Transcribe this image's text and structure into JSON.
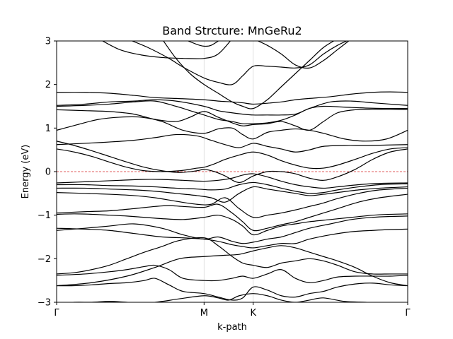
{
  "chart_data": {
    "type": "line",
    "title": "Band Strcture: MnGeRu2",
    "xlabel": "k-path",
    "ylabel": "Energy (eV)",
    "ylim": [
      -3,
      3
    ],
    "y_ticks": [
      -3,
      -2,
      -1,
      0,
      1,
      2,
      3
    ],
    "y_tick_labels": [
      "−3",
      "−2",
      "−1",
      "0",
      "1",
      "2",
      "3"
    ],
    "x_ticks": [
      {
        "label": "Γ",
        "pos": 0
      },
      {
        "label": "M",
        "pos": 0.42
      },
      {
        "label": "K",
        "pos": 0.56
      },
      {
        "label": "Γ",
        "pos": 1
      }
    ],
    "fermi_level": 0,
    "grid": "vertical lines at high-symmetry points",
    "series_color": "#000000",
    "fermi_color": "#d62728",
    "series": [
      {
        "x": [
          0,
          0.05,
          0.1,
          0.15,
          0.2,
          0.25,
          0.3,
          0.35,
          0.42,
          0.46,
          0.49,
          0.52,
          0.56,
          0.6,
          0.64,
          0.68,
          0.72,
          0.76,
          0.82,
          0.88,
          0.94,
          1
        ],
        "y": [
          -3.05,
          -3.0,
          -3.0,
          -2.98,
          -3.0,
          -3.02,
          -2.98,
          -2.92,
          -2.85,
          -2.9,
          -2.95,
          -2.85,
          -2.8,
          -2.85,
          -2.95,
          -3.0,
          -2.95,
          -2.9,
          -2.98,
          -3.0,
          -3.02,
          -3.05
        ]
      },
      {
        "x": [
          0,
          0.05,
          0.1,
          0.15,
          0.2,
          0.25,
          0.28,
          0.32,
          0.36,
          0.42,
          0.46,
          0.5,
          0.53,
          0.56,
          0.6,
          0.64,
          0.68,
          0.72,
          0.76,
          0.8,
          0.85,
          0.9,
          0.95,
          1
        ],
        "y": [
          -2.62,
          -2.62,
          -2.6,
          -2.57,
          -2.55,
          -2.5,
          -2.45,
          -2.6,
          -2.75,
          -2.8,
          -2.88,
          -2.95,
          -2.9,
          -2.65,
          -2.72,
          -2.85,
          -2.88,
          -2.8,
          -2.75,
          -2.65,
          -2.58,
          -2.56,
          -2.6,
          -2.62
        ]
      },
      {
        "x": [
          0,
          0.08,
          0.15,
          0.2,
          0.25,
          0.28,
          0.32,
          0.36,
          0.42,
          0.46,
          0.5,
          0.53,
          0.56,
          0.6,
          0.64,
          0.68,
          0.72,
          0.76,
          0.8,
          0.85,
          0.9,
          0.95,
          1
        ],
        "y": [
          -2.38,
          -2.35,
          -2.3,
          -2.25,
          -2.18,
          -2.15,
          -2.25,
          -2.45,
          -2.5,
          -2.5,
          -2.45,
          -2.4,
          -2.45,
          -2.35,
          -2.25,
          -2.45,
          -2.55,
          -2.5,
          -2.42,
          -2.4,
          -2.4,
          -2.4,
          -2.38
        ]
      },
      {
        "x": [
          0,
          0.05,
          0.1,
          0.15,
          0.2,
          0.25,
          0.3,
          0.35,
          0.42,
          0.46,
          0.5,
          0.53,
          0.56,
          0.6,
          0.64,
          0.68,
          0.72,
          0.76,
          0.8,
          0.85,
          0.9,
          0.95,
          1
        ],
        "y": [
          -2.35,
          -2.32,
          -2.25,
          -2.15,
          -2.0,
          -1.85,
          -1.72,
          -1.58,
          -1.52,
          -1.7,
          -1.95,
          -2.1,
          -2.15,
          -2.2,
          -2.1,
          -2.05,
          -2.0,
          -2.05,
          -2.15,
          -2.3,
          -2.35,
          -2.35,
          -2.35
        ]
      },
      {
        "x": [
          0,
          0.1,
          0.2,
          0.28,
          0.35,
          0.42,
          0.48,
          0.52,
          0.56,
          0.6,
          0.64,
          0.68,
          0.72,
          0.76,
          0.8,
          0.85,
          0.9,
          0.95,
          1
        ],
        "y": [
          -2.62,
          -2.55,
          -2.4,
          -2.2,
          -2.0,
          -1.95,
          -1.92,
          -1.9,
          -1.82,
          -1.75,
          -1.7,
          -1.75,
          -1.85,
          -1.95,
          -2.05,
          -2.2,
          -2.4,
          -2.55,
          -2.62
        ]
      },
      {
        "x": [
          0,
          0.08,
          0.15,
          0.22,
          0.3,
          0.36,
          0.42,
          0.46,
          0.5,
          0.53,
          0.56,
          0.6,
          0.64,
          0.68,
          0.72,
          0.78,
          0.84,
          0.9,
          0.95,
          1
        ],
        "y": [
          -1.3,
          -1.32,
          -1.35,
          -1.42,
          -1.5,
          -1.52,
          -1.55,
          -1.6,
          -1.68,
          -1.72,
          -1.75,
          -1.7,
          -1.65,
          -1.65,
          -1.55,
          -1.45,
          -1.38,
          -1.35,
          -1.33,
          -1.32
        ]
      },
      {
        "x": [
          0,
          0.08,
          0.15,
          0.22,
          0.3,
          0.36,
          0.42,
          0.46,
          0.5,
          0.53,
          0.56,
          0.6,
          0.64,
          0.68,
          0.72,
          0.78,
          0.84,
          0.9,
          0.95,
          1
        ],
        "y": [
          -1.35,
          -1.3,
          -1.25,
          -1.2,
          -1.3,
          -1.45,
          -1.55,
          -1.5,
          -1.6,
          -1.65,
          -1.62,
          -1.55,
          -1.5,
          -1.4,
          -1.3,
          -1.2,
          -1.1,
          -1.05,
          -1.03,
          -1.02
        ]
      },
      {
        "x": [
          0,
          0.05,
          0.1,
          0.15,
          0.2,
          0.25,
          0.3,
          0.36,
          0.42,
          0.46,
          0.5,
          0.53,
          0.56,
          0.6,
          0.64,
          0.68,
          0.72,
          0.78,
          0.84,
          0.9,
          0.95,
          1
        ],
        "y": [
          -0.98,
          -0.97,
          -0.98,
          -1.0,
          -1.02,
          -1.05,
          -1.08,
          -1.1,
          -1.05,
          -1.0,
          -1.1,
          -1.25,
          -1.45,
          -1.35,
          -1.25,
          -1.2,
          -1.15,
          -1.1,
          -1.05,
          -1.0,
          -0.98,
          -0.97
        ]
      },
      {
        "x": [
          0,
          0.08,
          0.15,
          0.22,
          0.28,
          0.32,
          0.36,
          0.42,
          0.46,
          0.5,
          0.53,
          0.56,
          0.6,
          0.64,
          0.68,
          0.72,
          0.76,
          0.8,
          0.86,
          0.92,
          1
        ],
        "y": [
          -0.95,
          -0.92,
          -0.9,
          -0.85,
          -0.8,
          -0.78,
          -0.8,
          -0.82,
          -0.75,
          -0.95,
          -1.15,
          -1.35,
          -1.3,
          -1.22,
          -1.15,
          -1.05,
          -0.95,
          -0.85,
          -0.7,
          -0.6,
          -0.52
        ]
      },
      {
        "x": [
          0,
          0.08,
          0.15,
          0.22,
          0.28,
          0.34,
          0.4,
          0.44,
          0.48,
          0.52,
          0.56,
          0.6,
          0.64,
          0.68,
          0.72,
          0.76,
          0.8,
          0.86,
          0.92,
          1
        ],
        "y": [
          -0.48,
          -0.5,
          -0.52,
          -0.55,
          -0.6,
          -0.68,
          -0.75,
          -0.75,
          -0.6,
          -0.85,
          -1.05,
          -1.0,
          -0.95,
          -0.88,
          -0.8,
          -0.72,
          -0.62,
          -0.5,
          -0.42,
          -0.38
        ]
      },
      {
        "x": [
          0,
          0.08,
          0.15,
          0.22,
          0.28,
          0.34,
          0.4,
          0.44,
          0.48,
          0.52,
          0.56,
          0.6,
          0.64,
          0.68,
          0.72,
          0.76,
          0.8,
          0.86,
          0.92,
          1
        ],
        "y": [
          -0.38,
          -0.38,
          -0.4,
          -0.42,
          -0.45,
          -0.5,
          -0.55,
          -0.6,
          -0.7,
          -0.5,
          -0.35,
          -0.4,
          -0.45,
          -0.5,
          -0.55,
          -0.52,
          -0.48,
          -0.42,
          -0.38,
          -0.35
        ]
      },
      {
        "x": [
          0,
          0.08,
          0.15,
          0.22,
          0.28,
          0.34,
          0.4,
          0.44,
          0.48,
          0.52,
          0.56,
          0.6,
          0.64,
          0.68,
          0.72,
          0.76,
          0.8,
          0.86,
          0.92,
          1
        ],
        "y": [
          -0.3,
          -0.3,
          -0.32,
          -0.33,
          -0.35,
          -0.38,
          -0.4,
          -0.42,
          -0.4,
          -0.3,
          -0.25,
          -0.3,
          -0.38,
          -0.45,
          -0.5,
          -0.48,
          -0.42,
          -0.35,
          -0.3,
          -0.28
        ]
      },
      {
        "x": [
          0,
          0.06,
          0.12,
          0.18,
          0.24,
          0.3,
          0.36,
          0.42,
          0.46,
          0.5,
          0.53,
          0.56,
          0.6,
          0.64,
          0.68,
          0.72,
          0.76,
          0.8,
          0.86,
          0.92,
          1
        ],
        "y": [
          -0.26,
          -0.24,
          -0.22,
          -0.2,
          -0.18,
          -0.18,
          -0.2,
          -0.22,
          -0.2,
          -0.15,
          -0.08,
          -0.05,
          -0.12,
          -0.22,
          -0.3,
          -0.35,
          -0.38,
          -0.35,
          -0.3,
          -0.27,
          -0.26
        ]
      },
      {
        "x": [
          0,
          0.05,
          0.1,
          0.15,
          0.2,
          0.25,
          0.3,
          0.35,
          0.4,
          0.42,
          0.45,
          0.48,
          0.52,
          0.56,
          0.6,
          0.64,
          0.66,
          0.68,
          0.72,
          0.76,
          0.8,
          0.85,
          0.9,
          0.95,
          1
        ],
        "y": [
          0.7,
          0.6,
          0.48,
          0.35,
          0.22,
          0.1,
          0.02,
          -0.02,
          0.02,
          0.05,
          0.0,
          -0.1,
          -0.25,
          -0.1,
          0.0,
          0.0,
          -0.02,
          -0.05,
          -0.15,
          -0.2,
          -0.12,
          0.05,
          0.28,
          0.45,
          0.52
        ]
      },
      {
        "x": [
          0,
          0.05,
          0.1,
          0.15,
          0.2,
          0.25,
          0.3,
          0.35,
          0.4,
          0.42,
          0.45,
          0.48,
          0.52,
          0.56,
          0.6,
          0.64,
          0.68,
          0.72,
          0.76,
          0.8,
          0.85,
          0.9,
          0.95,
          1
        ],
        "y": [
          0.52,
          0.45,
          0.35,
          0.22,
          0.1,
          0.02,
          0.0,
          0.02,
          0.08,
          0.1,
          0.18,
          0.28,
          0.38,
          0.45,
          0.38,
          0.25,
          0.15,
          0.08,
          0.08,
          0.15,
          0.28,
          0.42,
          0.52,
          0.55
        ]
      },
      {
        "x": [
          0,
          0.08,
          0.15,
          0.22,
          0.28,
          0.34,
          0.4,
          0.44,
          0.48,
          0.52,
          0.56,
          0.6,
          0.64,
          0.68,
          0.72,
          0.76,
          0.82,
          0.88,
          0.94,
          1
        ],
        "y": [
          0.62,
          0.65,
          0.68,
          0.72,
          0.78,
          0.85,
          0.82,
          0.72,
          0.62,
          0.55,
          0.65,
          0.58,
          0.52,
          0.45,
          0.5,
          0.58,
          0.6,
          0.6,
          0.61,
          0.62
        ]
      },
      {
        "x": [
          0,
          0.06,
          0.12,
          0.18,
          0.24,
          0.3,
          0.36,
          0.42,
          0.46,
          0.5,
          0.53,
          0.56,
          0.6,
          0.64,
          0.68,
          0.72,
          0.76,
          0.82,
          0.88,
          0.94,
          1
        ],
        "y": [
          0.95,
          1.08,
          1.2,
          1.25,
          1.25,
          1.15,
          0.95,
          0.88,
          0.98,
          1.0,
          0.85,
          0.75,
          0.9,
          0.95,
          0.98,
          0.95,
          0.88,
          0.75,
          0.7,
          0.75,
          0.95
        ]
      },
      {
        "x": [
          0,
          0.08,
          0.15,
          0.22,
          0.28,
          0.34,
          0.38,
          0.42,
          0.46,
          0.5,
          0.53,
          0.56,
          0.6,
          0.64,
          0.68,
          0.72,
          0.76,
          0.8,
          0.85,
          0.9,
          0.95,
          1
        ],
        "y": [
          1.42,
          1.4,
          1.38,
          1.32,
          1.2,
          1.15,
          1.25,
          1.38,
          1.25,
          1.12,
          1.05,
          1.08,
          1.1,
          1.15,
          1.05,
          0.95,
          1.15,
          1.35,
          1.42,
          1.43,
          1.43,
          1.42
        ]
      },
      {
        "x": [
          0,
          0.08,
          0.15,
          0.22,
          0.28,
          0.34,
          0.38,
          0.42,
          0.46,
          0.5,
          0.53,
          0.56,
          0.6,
          0.64,
          0.68,
          0.72,
          0.76,
          0.82,
          0.88,
          0.94,
          1
        ],
        "y": [
          1.5,
          1.52,
          1.55,
          1.6,
          1.62,
          1.5,
          1.4,
          1.3,
          1.2,
          1.15,
          1.1,
          1.1,
          1.12,
          1.18,
          1.3,
          1.45,
          1.5,
          1.48,
          1.46,
          1.45,
          1.45
        ]
      },
      {
        "x": [
          0,
          0.08,
          0.15,
          0.22,
          0.28,
          0.34,
          0.42,
          0.46,
          0.5,
          0.53,
          0.56,
          0.6,
          0.64,
          0.68,
          0.72,
          0.78,
          0.84,
          0.9,
          0.95,
          1
        ],
        "y": [
          1.52,
          1.55,
          1.6,
          1.62,
          1.65,
          1.62,
          1.5,
          1.4,
          1.35,
          1.32,
          1.3,
          1.3,
          1.3,
          1.32,
          1.45,
          1.6,
          1.62,
          1.58,
          1.55,
          1.52
        ]
      },
      {
        "x": [
          0,
          0.08,
          0.15,
          0.22,
          0.28,
          0.34,
          0.42,
          0.46,
          0.5,
          0.53,
          0.56,
          0.6,
          0.64,
          0.68,
          0.72,
          0.78,
          0.84,
          0.9,
          0.95,
          1
        ],
        "y": [
          1.82,
          1.82,
          1.8,
          1.75,
          1.7,
          1.68,
          1.65,
          1.62,
          1.6,
          1.58,
          1.55,
          1.57,
          1.6,
          1.65,
          1.68,
          1.72,
          1.78,
          1.82,
          1.83,
          1.82
        ]
      },
      {
        "x": [
          0.3,
          0.34,
          0.38,
          0.42,
          0.46,
          0.5,
          0.53,
          0.56,
          0.6,
          0.64,
          0.68,
          0.72,
          0.76,
          0.8
        ],
        "y": [
          3.05,
          2.6,
          2.25,
          2.0,
          1.8,
          1.6,
          1.5,
          1.45,
          1.65,
          1.95,
          2.25,
          2.55,
          2.85,
          3.05
        ]
      },
      {
        "x": [
          0.2,
          0.26,
          0.32,
          0.36,
          0.42,
          0.46,
          0.5,
          0.53,
          0.56,
          0.6,
          0.64,
          0.68,
          0.72,
          0.76,
          0.8,
          0.84
        ],
        "y": [
          3.05,
          2.85,
          2.6,
          2.4,
          2.15,
          2.05,
          2.0,
          2.2,
          2.42,
          2.42,
          2.4,
          2.38,
          2.45,
          2.7,
          2.9,
          3.05
        ]
      },
      {
        "x": [
          0.12,
          0.18,
          0.24,
          0.3,
          0.36,
          0.42,
          0.46,
          0.5
        ],
        "y": [
          3.05,
          2.8,
          2.68,
          2.62,
          2.6,
          2.6,
          2.7,
          3.05
        ]
      },
      {
        "x": [
          0.36,
          0.4,
          0.42,
          0.44,
          0.47
        ],
        "y": [
          3.05,
          2.92,
          2.88,
          2.9,
          3.05
        ]
      },
      {
        "x": [
          0.56,
          0.6,
          0.64,
          0.68,
          0.72,
          0.76,
          0.8,
          0.84
        ],
        "y": [
          3.05,
          2.9,
          2.7,
          2.45,
          2.38,
          2.55,
          2.8,
          3.05
        ]
      }
    ]
  }
}
